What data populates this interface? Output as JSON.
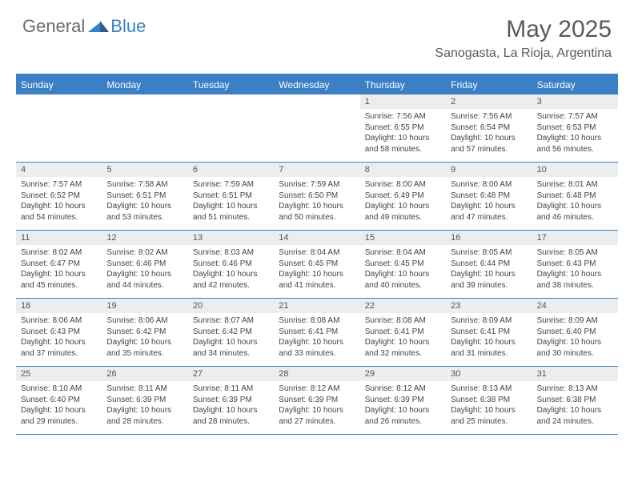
{
  "logo": {
    "general": "General",
    "blue": "Blue",
    "mark_color": "#3b7fc4"
  },
  "title": "May 2025",
  "location": "Sanogasta, La Rioja, Argentina",
  "header_bg": "#3b7fc4",
  "weekdays": [
    "Sunday",
    "Monday",
    "Tuesday",
    "Wednesday",
    "Thursday",
    "Friday",
    "Saturday"
  ],
  "weeks": [
    [
      {
        "n": "",
        "empty": true
      },
      {
        "n": "",
        "empty": true
      },
      {
        "n": "",
        "empty": true
      },
      {
        "n": "",
        "empty": true
      },
      {
        "n": "1",
        "sunrise": "Sunrise: 7:56 AM",
        "sunset": "Sunset: 6:55 PM",
        "daylight": "Daylight: 10 hours and 58 minutes."
      },
      {
        "n": "2",
        "sunrise": "Sunrise: 7:56 AM",
        "sunset": "Sunset: 6:54 PM",
        "daylight": "Daylight: 10 hours and 57 minutes."
      },
      {
        "n": "3",
        "sunrise": "Sunrise: 7:57 AM",
        "sunset": "Sunset: 6:53 PM",
        "daylight": "Daylight: 10 hours and 56 minutes."
      }
    ],
    [
      {
        "n": "4",
        "sunrise": "Sunrise: 7:57 AM",
        "sunset": "Sunset: 6:52 PM",
        "daylight": "Daylight: 10 hours and 54 minutes."
      },
      {
        "n": "5",
        "sunrise": "Sunrise: 7:58 AM",
        "sunset": "Sunset: 6:51 PM",
        "daylight": "Daylight: 10 hours and 53 minutes."
      },
      {
        "n": "6",
        "sunrise": "Sunrise: 7:59 AM",
        "sunset": "Sunset: 6:51 PM",
        "daylight": "Daylight: 10 hours and 51 minutes."
      },
      {
        "n": "7",
        "sunrise": "Sunrise: 7:59 AM",
        "sunset": "Sunset: 6:50 PM",
        "daylight": "Daylight: 10 hours and 50 minutes."
      },
      {
        "n": "8",
        "sunrise": "Sunrise: 8:00 AM",
        "sunset": "Sunset: 6:49 PM",
        "daylight": "Daylight: 10 hours and 49 minutes."
      },
      {
        "n": "9",
        "sunrise": "Sunrise: 8:00 AM",
        "sunset": "Sunset: 6:48 PM",
        "daylight": "Daylight: 10 hours and 47 minutes."
      },
      {
        "n": "10",
        "sunrise": "Sunrise: 8:01 AM",
        "sunset": "Sunset: 6:48 PM",
        "daylight": "Daylight: 10 hours and 46 minutes."
      }
    ],
    [
      {
        "n": "11",
        "sunrise": "Sunrise: 8:02 AM",
        "sunset": "Sunset: 6:47 PM",
        "daylight": "Daylight: 10 hours and 45 minutes."
      },
      {
        "n": "12",
        "sunrise": "Sunrise: 8:02 AM",
        "sunset": "Sunset: 6:46 PM",
        "daylight": "Daylight: 10 hours and 44 minutes."
      },
      {
        "n": "13",
        "sunrise": "Sunrise: 8:03 AM",
        "sunset": "Sunset: 6:46 PM",
        "daylight": "Daylight: 10 hours and 42 minutes."
      },
      {
        "n": "14",
        "sunrise": "Sunrise: 8:04 AM",
        "sunset": "Sunset: 6:45 PM",
        "daylight": "Daylight: 10 hours and 41 minutes."
      },
      {
        "n": "15",
        "sunrise": "Sunrise: 8:04 AM",
        "sunset": "Sunset: 6:45 PM",
        "daylight": "Daylight: 10 hours and 40 minutes."
      },
      {
        "n": "16",
        "sunrise": "Sunrise: 8:05 AM",
        "sunset": "Sunset: 6:44 PM",
        "daylight": "Daylight: 10 hours and 39 minutes."
      },
      {
        "n": "17",
        "sunrise": "Sunrise: 8:05 AM",
        "sunset": "Sunset: 6:43 PM",
        "daylight": "Daylight: 10 hours and 38 minutes."
      }
    ],
    [
      {
        "n": "18",
        "sunrise": "Sunrise: 8:06 AM",
        "sunset": "Sunset: 6:43 PM",
        "daylight": "Daylight: 10 hours and 37 minutes."
      },
      {
        "n": "19",
        "sunrise": "Sunrise: 8:06 AM",
        "sunset": "Sunset: 6:42 PM",
        "daylight": "Daylight: 10 hours and 35 minutes."
      },
      {
        "n": "20",
        "sunrise": "Sunrise: 8:07 AM",
        "sunset": "Sunset: 6:42 PM",
        "daylight": "Daylight: 10 hours and 34 minutes."
      },
      {
        "n": "21",
        "sunrise": "Sunrise: 8:08 AM",
        "sunset": "Sunset: 6:41 PM",
        "daylight": "Daylight: 10 hours and 33 minutes."
      },
      {
        "n": "22",
        "sunrise": "Sunrise: 8:08 AM",
        "sunset": "Sunset: 6:41 PM",
        "daylight": "Daylight: 10 hours and 32 minutes."
      },
      {
        "n": "23",
        "sunrise": "Sunrise: 8:09 AM",
        "sunset": "Sunset: 6:41 PM",
        "daylight": "Daylight: 10 hours and 31 minutes."
      },
      {
        "n": "24",
        "sunrise": "Sunrise: 8:09 AM",
        "sunset": "Sunset: 6:40 PM",
        "daylight": "Daylight: 10 hours and 30 minutes."
      }
    ],
    [
      {
        "n": "25",
        "sunrise": "Sunrise: 8:10 AM",
        "sunset": "Sunset: 6:40 PM",
        "daylight": "Daylight: 10 hours and 29 minutes."
      },
      {
        "n": "26",
        "sunrise": "Sunrise: 8:11 AM",
        "sunset": "Sunset: 6:39 PM",
        "daylight": "Daylight: 10 hours and 28 minutes."
      },
      {
        "n": "27",
        "sunrise": "Sunrise: 8:11 AM",
        "sunset": "Sunset: 6:39 PM",
        "daylight": "Daylight: 10 hours and 28 minutes."
      },
      {
        "n": "28",
        "sunrise": "Sunrise: 8:12 AM",
        "sunset": "Sunset: 6:39 PM",
        "daylight": "Daylight: 10 hours and 27 minutes."
      },
      {
        "n": "29",
        "sunrise": "Sunrise: 8:12 AM",
        "sunset": "Sunset: 6:39 PM",
        "daylight": "Daylight: 10 hours and 26 minutes."
      },
      {
        "n": "30",
        "sunrise": "Sunrise: 8:13 AM",
        "sunset": "Sunset: 6:38 PM",
        "daylight": "Daylight: 10 hours and 25 minutes."
      },
      {
        "n": "31",
        "sunrise": "Sunrise: 8:13 AM",
        "sunset": "Sunset: 6:38 PM",
        "daylight": "Daylight: 10 hours and 24 minutes."
      }
    ]
  ]
}
